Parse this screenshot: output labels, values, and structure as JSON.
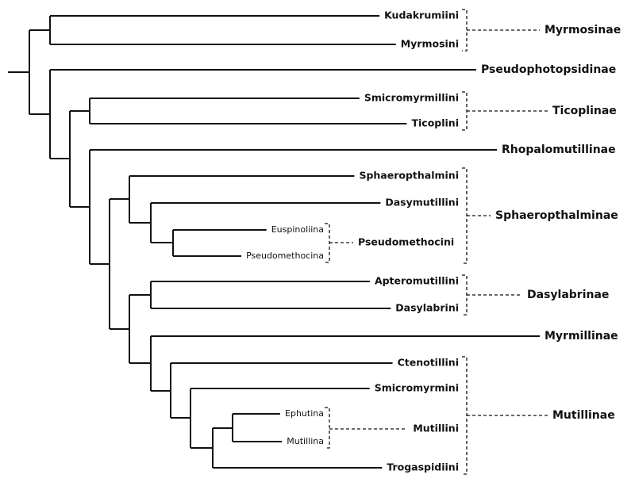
{
  "subfamilies": [
    "Myrmosinae",
    "Pseudophotopsidinae",
    "Ticoplinae",
    "Rhopalomutillinae",
    "Sphaeropthalminae",
    "Dasylabrinae",
    "Myrmillinae",
    "Mutillinae"
  ],
  "tribes": [
    "Kudakrumiini",
    "Myrmosini",
    "Smicromyrmillini",
    "Ticoplini",
    "Sphaeropthalmini",
    "Dasymutillini",
    "Pseudomethocini",
    "Apteromutillini",
    "Dasylabrini",
    "Ctenotillini",
    "Smicromyrmini",
    "Mutillini",
    "Trogaspidiini"
  ],
  "subtribes": [
    "Euspinoliina",
    "Pseudomethocina",
    "Ephutina",
    "Mutillina"
  ]
}
